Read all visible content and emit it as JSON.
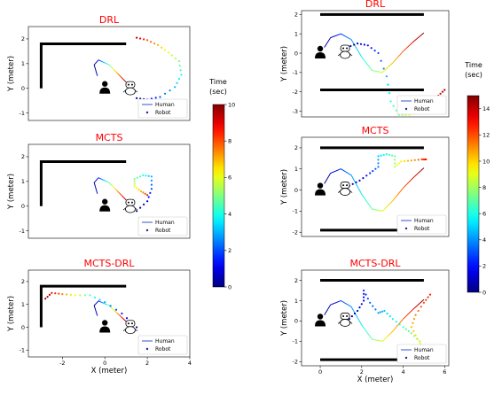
{
  "chart_data": [
    {
      "type": "scatter",
      "title": "DRL",
      "ylabel": "Y (meter)",
      "xlabel": "",
      "xlim": [
        -3.6,
        4.0
      ],
      "ylim": [
        -1.3,
        2.5
      ],
      "yticks": [
        "2",
        "1",
        "0",
        "-1"
      ],
      "xticks": [],
      "walls": [
        {
          "x": [
            -3,
            -3,
            1
          ],
          "y": [
            0,
            1.8,
            1.8
          ]
        }
      ],
      "human": {
        "x": 0.0,
        "y": 0.0
      },
      "robot": {
        "x": 1.2,
        "y": -0.05
      },
      "legend": [
        "Human",
        "Robot"
      ],
      "series": [
        {
          "x": [
            1.0,
            0.6,
            0.2,
            -0.3,
            -0.5,
            -0.35
          ],
          "y": [
            0.25,
            0.6,
            0.95,
            1.15,
            0.95,
            0.5
          ],
          "t": [
            0,
            2,
            4,
            6,
            8,
            10
          ]
        },
        {
          "x": [
            1.5,
            2.0,
            2.6,
            3.3,
            3.6,
            3.5,
            3.0,
            2.5,
            2.0,
            1.5
          ],
          "y": [
            -0.4,
            -0.45,
            -0.35,
            0.05,
            0.55,
            1.1,
            1.45,
            1.75,
            1.95,
            2.05
          ],
          "t": [
            0,
            1,
            2,
            3,
            4,
            5,
            6,
            7,
            8,
            9.5
          ]
        }
      ]
    },
    {
      "type": "scatter",
      "title": "MCTS",
      "ylabel": "Y (meter)",
      "xlabel": "",
      "xlim": [
        -3.6,
        4.0
      ],
      "ylim": [
        -1.3,
        2.5
      ],
      "yticks": [
        "2",
        "1",
        "0",
        "-1"
      ],
      "xticks": [],
      "walls": [
        {
          "x": [
            -3,
            -3,
            1
          ],
          "y": [
            0,
            1.8,
            1.8
          ]
        }
      ],
      "human": {
        "x": 0.0,
        "y": 0.0
      },
      "robot": {
        "x": 1.2,
        "y": -0.05
      },
      "legend": [
        "Human",
        "Robot"
      ],
      "series": [
        {
          "x": [
            1.0,
            0.6,
            0.2,
            -0.3,
            -0.5,
            -0.35
          ],
          "y": [
            0.25,
            0.6,
            0.95,
            1.15,
            0.95,
            0.5
          ],
          "t": [
            0,
            2,
            4,
            6,
            8,
            10
          ]
        },
        {
          "x": [
            1.5,
            2.0,
            2.2,
            2.2,
            1.8,
            1.4,
            1.4,
            1.7,
            2.0
          ],
          "y": [
            -0.2,
            0.2,
            0.7,
            1.2,
            1.25,
            1.1,
            0.8,
            0.6,
            0.45
          ],
          "t": [
            0,
            1,
            2,
            3,
            4,
            5,
            6,
            7,
            8.5
          ]
        }
      ]
    },
    {
      "type": "scatter",
      "title": "MCTS-DRL",
      "ylabel": "Y (meter)",
      "xlabel": "X (meter)",
      "xlim": [
        -3.6,
        4.0
      ],
      "ylim": [
        -1.3,
        2.5
      ],
      "yticks": [
        "2",
        "1",
        "0",
        "-1"
      ],
      "xticks": [
        "-2",
        "0",
        "2",
        "4"
      ],
      "walls": [
        {
          "x": [
            -3,
            -3,
            1
          ],
          "y": [
            0,
            1.8,
            1.8
          ]
        }
      ],
      "human": {
        "x": 0.0,
        "y": 0.0
      },
      "robot": {
        "x": 1.2,
        "y": -0.05
      },
      "legend": [
        "Human",
        "Robot"
      ],
      "series": [
        {
          "x": [
            1.0,
            0.6,
            0.2,
            -0.3,
            -0.5,
            -0.35
          ],
          "y": [
            0.25,
            0.6,
            0.95,
            1.15,
            0.95,
            0.5
          ],
          "t": [
            0,
            2,
            4,
            6,
            8,
            10
          ]
        },
        {
          "x": [
            1.5,
            0.8,
            0.0,
            -0.7,
            -1.4,
            -2.0,
            -2.5,
            -2.8
          ],
          "y": [
            0.0,
            0.6,
            1.1,
            1.4,
            1.4,
            1.45,
            1.5,
            1.25
          ],
          "t": [
            0,
            1.5,
            3,
            4.5,
            6,
            7.5,
            9,
            10
          ]
        }
      ]
    },
    {
      "type": "scatter",
      "title": "DRL",
      "ylabel": "Y (meter)",
      "xlabel": "",
      "xlim": [
        -0.9,
        6.2
      ],
      "ylim": [
        -3.3,
        2.2
      ],
      "yticks": [
        "2",
        "1",
        "0",
        "-1",
        "-2",
        "-3"
      ],
      "xticks": [],
      "walls": [
        {
          "x": [
            0,
            5
          ],
          "y": [
            2,
            2
          ]
        },
        {
          "x": [
            0,
            5
          ],
          "y": [
            -1.9,
            -1.9
          ]
        }
      ],
      "human": {
        "x": 0.0,
        "y": 0.0
      },
      "robot": {
        "x": 1.2,
        "y": 0.0
      },
      "legend": [
        "Human",
        "Robot"
      ],
      "series": [
        {
          "x": [
            0.2,
            0.5,
            1.0,
            1.5,
            2.0,
            2.5,
            3.0,
            3.5,
            4.0,
            4.5,
            5.0
          ],
          "y": [
            0.3,
            0.8,
            1.0,
            0.7,
            -0.2,
            -0.9,
            -1.0,
            -0.5,
            0.1,
            0.6,
            1.05
          ],
          "t": [
            0,
            1.5,
            3,
            4.5,
            6,
            7.5,
            9,
            10.5,
            12,
            13.5,
            15
          ]
        },
        {
          "x": [
            1.3,
            1.8,
            2.3,
            2.8,
            3.2,
            3.4,
            3.8,
            4.3,
            4.8,
            5.3,
            5.7,
            6.0
          ],
          "y": [
            0.3,
            0.5,
            0.4,
            0.0,
            -1.2,
            -2.5,
            -3.2,
            -3.2,
            -3.0,
            -2.6,
            -2.2,
            -1.9
          ],
          "t": [
            0,
            1,
            2,
            3,
            4.5,
            6,
            7.5,
            9,
            10.5,
            12,
            13.5,
            14.5
          ]
        }
      ]
    },
    {
      "type": "scatter",
      "title": "MCTS",
      "ylabel": "Y (meter)",
      "xlabel": "",
      "xlim": [
        -0.9,
        6.2
      ],
      "ylim": [
        -2.2,
        2.5
      ],
      "yticks": [
        "2",
        "1",
        "0",
        "-1",
        "-2"
      ],
      "xticks": [],
      "walls": [
        {
          "x": [
            0,
            5
          ],
          "y": [
            2,
            2
          ]
        },
        {
          "x": [
            0,
            5
          ],
          "y": [
            -1.9,
            -1.9
          ]
        }
      ],
      "human": {
        "x": 0.0,
        "y": 0.0
      },
      "robot": {
        "x": 1.2,
        "y": 0.0
      },
      "legend": [
        "Human",
        "Robot"
      ],
      "series": [
        {
          "x": [
            0.2,
            0.5,
            1.0,
            1.5,
            2.0,
            2.5,
            3.0,
            3.5,
            4.0,
            4.5,
            5.0
          ],
          "y": [
            0.3,
            0.8,
            1.0,
            0.7,
            -0.2,
            -0.9,
            -1.0,
            -0.5,
            0.1,
            0.6,
            1.05
          ],
          "t": [
            0,
            1.5,
            3,
            4.5,
            6,
            7.5,
            9,
            10.5,
            12,
            13.5,
            15
          ]
        },
        {
          "x": [
            1.4,
            1.9,
            2.4,
            2.8,
            2.8,
            3.2,
            3.6,
            3.6,
            3.9,
            4.4,
            4.9,
            5.1
          ],
          "y": [
            0.2,
            0.45,
            0.8,
            1.1,
            1.6,
            1.7,
            1.6,
            1.1,
            1.35,
            1.4,
            1.45,
            1.45
          ],
          "t": [
            0,
            1.2,
            2.4,
            3.6,
            4.8,
            6,
            7.2,
            8.4,
            9.6,
            10.8,
            12,
            13
          ]
        }
      ]
    },
    {
      "type": "scatter",
      "title": "MCTS-DRL",
      "ylabel": "Y (meter)",
      "xlabel": "X (meter)",
      "xlim": [
        -0.9,
        6.2
      ],
      "ylim": [
        -2.2,
        2.5
      ],
      "yticks": [
        "2",
        "1",
        "0",
        "-1",
        "-2"
      ],
      "xticks": [
        "0",
        "2",
        "4",
        "6"
      ],
      "walls": [
        {
          "x": [
            0,
            5
          ],
          "y": [
            2,
            2
          ]
        },
        {
          "x": [
            0,
            5
          ],
          "y": [
            -1.9,
            -1.9
          ]
        }
      ],
      "human": {
        "x": 0.0,
        "y": 0.0
      },
      "robot": {
        "x": 1.2,
        "y": 0.0
      },
      "legend": [
        "Human",
        "Robot"
      ],
      "series": [
        {
          "x": [
            0.2,
            0.5,
            1.0,
            1.5,
            2.0,
            2.5,
            3.0,
            3.5,
            4.0,
            4.5,
            5.0
          ],
          "y": [
            0.3,
            0.8,
            1.0,
            0.7,
            -0.2,
            -0.9,
            -1.0,
            -0.5,
            0.1,
            0.6,
            1.05
          ],
          "t": [
            0,
            1.5,
            3,
            4.5,
            6,
            7.5,
            9,
            10.5,
            12,
            13.5,
            15
          ]
        },
        {
          "x": [
            1.4,
            1.8,
            2.1,
            2.1,
            2.4,
            2.8,
            3.1,
            3.5,
            4.0,
            4.4,
            4.8,
            5.0,
            4.7,
            4.4,
            4.6,
            5.0,
            5.3
          ],
          "y": [
            0.1,
            0.5,
            1.0,
            1.5,
            0.9,
            0.4,
            0.5,
            0.1,
            -0.3,
            -0.6,
            -1.0,
            -1.5,
            -0.9,
            -0.3,
            0.3,
            0.9,
            1.3
          ],
          "t": [
            0,
            0.8,
            1.6,
            2.4,
            3.2,
            4,
            4.8,
            5.6,
            6.4,
            7.2,
            8,
            8.8,
            9.6,
            10.4,
            11.2,
            12,
            12.8
          ]
        }
      ]
    }
  ],
  "colorbars": [
    {
      "label": "Time\n(sec)",
      "min": 0,
      "max": 10,
      "ticks": [
        0,
        2,
        4,
        6,
        8,
        10
      ]
    },
    {
      "label": "Time\n(sec)",
      "min": 0,
      "max": 15,
      "ticks": [
        0,
        2,
        4,
        6,
        8,
        10,
        12,
        14
      ]
    }
  ],
  "colors": {
    "title": "#ff0000",
    "wall": "#000000",
    "legend_border": "#cccccc"
  }
}
